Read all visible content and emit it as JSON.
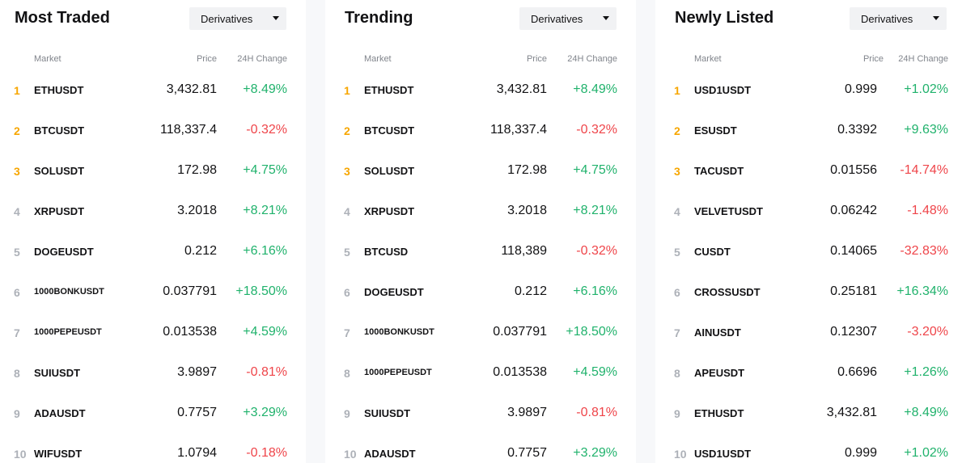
{
  "colors": {
    "up": "#20b26c",
    "down": "#ef454a",
    "rank_top": "#f7a600",
    "rank_other": "#adb1b8"
  },
  "columns": {
    "market": "Market",
    "price": "Price",
    "change": "24H Change"
  },
  "panels": [
    {
      "title": "Most Traded",
      "dropdown": "Derivatives",
      "rows": [
        {
          "rank": "1",
          "symbol": "ETHUSDT",
          "price": "3,432.81",
          "change": "+8.49%",
          "dir": "up"
        },
        {
          "rank": "2",
          "symbol": "BTCUSDT",
          "price": "118,337.4",
          "change": "-0.32%",
          "dir": "down"
        },
        {
          "rank": "3",
          "symbol": "SOLUSDT",
          "price": "172.98",
          "change": "+4.75%",
          "dir": "up"
        },
        {
          "rank": "4",
          "symbol": "XRPUSDT",
          "price": "3.2018",
          "change": "+8.21%",
          "dir": "up"
        },
        {
          "rank": "5",
          "symbol": "DOGEUSDT",
          "price": "0.212",
          "change": "+6.16%",
          "dir": "up"
        },
        {
          "rank": "6",
          "symbol": "1000BONKUSDT",
          "price": "0.037791",
          "change": "+18.50%",
          "dir": "up"
        },
        {
          "rank": "7",
          "symbol": "1000PEPEUSDT",
          "price": "0.013538",
          "change": "+4.59%",
          "dir": "up"
        },
        {
          "rank": "8",
          "symbol": "SUIUSDT",
          "price": "3.9897",
          "change": "-0.81%",
          "dir": "down"
        },
        {
          "rank": "9",
          "symbol": "ADAUSDT",
          "price": "0.7757",
          "change": "+3.29%",
          "dir": "up"
        },
        {
          "rank": "10",
          "symbol": "WIFUSDT",
          "price": "1.0794",
          "change": "-0.18%",
          "dir": "down"
        }
      ]
    },
    {
      "title": "Trending",
      "dropdown": "Derivatives",
      "rows": [
        {
          "rank": "1",
          "symbol": "ETHUSDT",
          "price": "3,432.81",
          "change": "+8.49%",
          "dir": "up"
        },
        {
          "rank": "2",
          "symbol": "BTCUSDT",
          "price": "118,337.4",
          "change": "-0.32%",
          "dir": "down"
        },
        {
          "rank": "3",
          "symbol": "SOLUSDT",
          "price": "172.98",
          "change": "+4.75%",
          "dir": "up"
        },
        {
          "rank": "4",
          "symbol": "XRPUSDT",
          "price": "3.2018",
          "change": "+8.21%",
          "dir": "up"
        },
        {
          "rank": "5",
          "symbol": "BTCUSD",
          "price": "118,389",
          "change": "-0.32%",
          "dir": "down"
        },
        {
          "rank": "6",
          "symbol": "DOGEUSDT",
          "price": "0.212",
          "change": "+6.16%",
          "dir": "up"
        },
        {
          "rank": "7",
          "symbol": "1000BONKUSDT",
          "price": "0.037791",
          "change": "+18.50%",
          "dir": "up"
        },
        {
          "rank": "8",
          "symbol": "1000PEPEUSDT",
          "price": "0.013538",
          "change": "+4.59%",
          "dir": "up"
        },
        {
          "rank": "9",
          "symbol": "SUIUSDT",
          "price": "3.9897",
          "change": "-0.81%",
          "dir": "down"
        },
        {
          "rank": "10",
          "symbol": "ADAUSDT",
          "price": "0.7757",
          "change": "+3.29%",
          "dir": "up"
        }
      ]
    },
    {
      "title": "Newly Listed",
      "dropdown": "Derivatives",
      "rows": [
        {
          "rank": "1",
          "symbol": "USD1USDT",
          "price": "0.999",
          "change": "+1.02%",
          "dir": "up"
        },
        {
          "rank": "2",
          "symbol": "ESUSDT",
          "price": "0.3392",
          "change": "+9.63%",
          "dir": "up"
        },
        {
          "rank": "3",
          "symbol": "TACUSDT",
          "price": "0.01556",
          "change": "-14.74%",
          "dir": "down"
        },
        {
          "rank": "4",
          "symbol": "VELVETUSDT",
          "price": "0.06242",
          "change": "-1.48%",
          "dir": "down"
        },
        {
          "rank": "5",
          "symbol": "CUSDT",
          "price": "0.14065",
          "change": "-32.83%",
          "dir": "down"
        },
        {
          "rank": "6",
          "symbol": "CROSSUSDT",
          "price": "0.25181",
          "change": "+16.34%",
          "dir": "up"
        },
        {
          "rank": "7",
          "symbol": "AINUSDT",
          "price": "0.12307",
          "change": "-3.20%",
          "dir": "down"
        },
        {
          "rank": "8",
          "symbol": "APEUSDT",
          "price": "0.6696",
          "change": "+1.26%",
          "dir": "up"
        },
        {
          "rank": "9",
          "symbol": "ETHUSDT",
          "price": "3,432.81",
          "change": "+8.49%",
          "dir": "up"
        },
        {
          "rank": "10",
          "symbol": "USD1USDT",
          "price": "0.999",
          "change": "+1.02%",
          "dir": "up"
        }
      ]
    }
  ]
}
